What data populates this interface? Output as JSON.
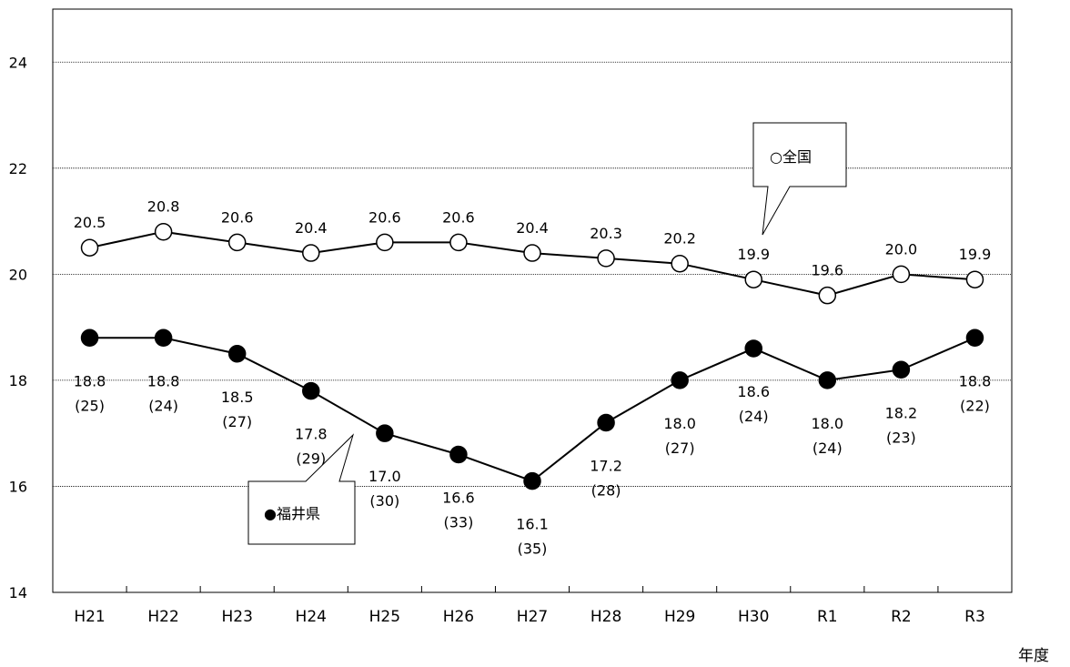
{
  "chart_data": {
    "type": "line",
    "categories": [
      "H21",
      "H22",
      "H23",
      "H24",
      "H25",
      "H26",
      "H27",
      "H28",
      "H29",
      "H30",
      "R1",
      "R2",
      "R3"
    ],
    "xlabel": "年度",
    "ylim": [
      14,
      25
    ],
    "yticks": [
      14,
      16,
      18,
      20,
      22,
      24
    ],
    "grid": "horizontal dotted",
    "series": [
      {
        "name": "全国",
        "legend_label": "○全国",
        "marker": "open-circle",
        "values": [
          20.5,
          20.8,
          20.6,
          20.4,
          20.6,
          20.6,
          20.4,
          20.3,
          20.2,
          19.9,
          19.6,
          20.0,
          19.9
        ],
        "value_labels": [
          "20.5",
          "20.8",
          "20.6",
          "20.4",
          "20.6",
          "20.6",
          "20.4",
          "20.3",
          "20.2",
          "19.9",
          "19.6",
          "20.0",
          "19.9"
        ]
      },
      {
        "name": "福井県",
        "legend_label": "●福井県",
        "marker": "filled-circle",
        "values": [
          18.8,
          18.8,
          18.5,
          17.8,
          17.0,
          16.6,
          16.1,
          17.2,
          18.0,
          18.6,
          18.0,
          18.2,
          18.8
        ],
        "value_labels": [
          "18.8",
          "18.8",
          "18.5",
          "17.8",
          "17.0",
          "16.6",
          "16.1",
          "17.2",
          "18.0",
          "18.6",
          "18.0",
          "18.2",
          "18.8"
        ],
        "rank_labels": [
          "(25)",
          "(24)",
          "(27)",
          "(29)",
          "(30)",
          "(33)",
          "(35)",
          "(28)",
          "(27)",
          "(24)",
          "(24)",
          "(23)",
          "(22)"
        ]
      }
    ]
  }
}
